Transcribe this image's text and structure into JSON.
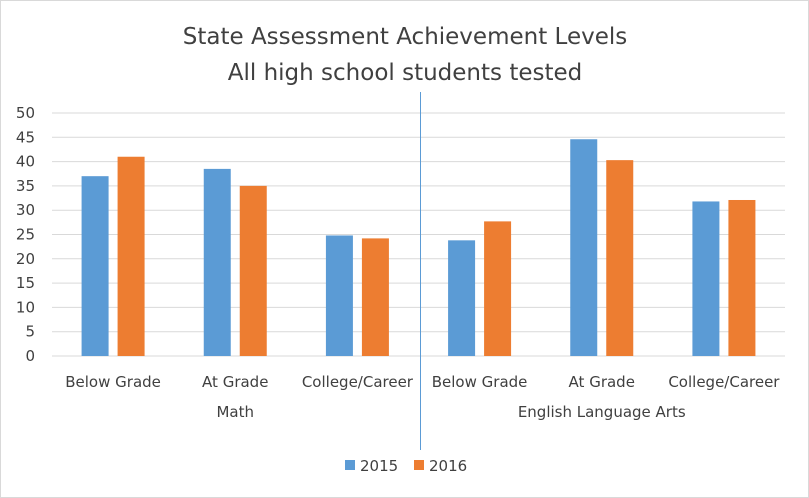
{
  "chart_data": {
    "type": "bar",
    "title": "State Assessment Achievement Levels",
    "subtitle": "All high school students tested",
    "groups": [
      {
        "name": "Math",
        "categories": [
          "Below Grade",
          "At Grade",
          "College/Career"
        ]
      },
      {
        "name": "English Language Arts",
        "categories": [
          "Below Grade",
          "At Grade",
          "College/Career"
        ]
      }
    ],
    "categories": [
      "Below Grade",
      "At Grade",
      "College/Career",
      "Below Grade",
      "At Grade",
      "College/Career"
    ],
    "series": [
      {
        "name": "2015",
        "color": "#5B9BD5",
        "values": [
          37,
          38.5,
          24.8,
          23.8,
          44.6,
          31.8
        ]
      },
      {
        "name": "2016",
        "color": "#ED7D31",
        "values": [
          41,
          35,
          24.2,
          27.7,
          40.3,
          32.1
        ]
      }
    ],
    "ylim": [
      0,
      50
    ],
    "yticks": [
      0,
      5,
      10,
      15,
      20,
      25,
      30,
      35,
      40,
      45,
      50
    ],
    "grid": true,
    "legend_position": "bottom",
    "divider_color": "#5B9BD5",
    "xlabel": "",
    "ylabel": ""
  }
}
